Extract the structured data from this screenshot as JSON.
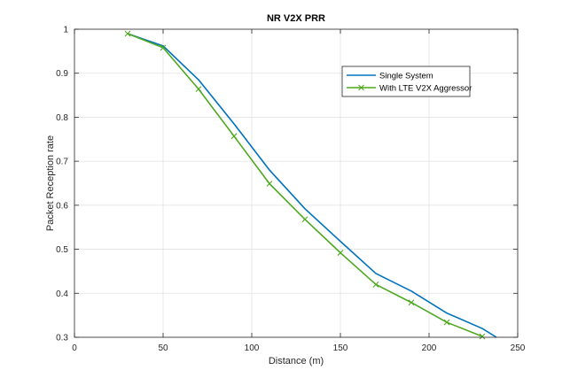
{
  "chart_data": {
    "type": "line",
    "title": "NR V2X PRR",
    "xlabel": "Distance (m)",
    "ylabel": "Packet Reception rate",
    "xlim": [
      0,
      250
    ],
    "ylim": [
      0.3,
      1
    ],
    "xticks": [
      "0",
      "50",
      "100",
      "150",
      "200",
      "250"
    ],
    "yticks": [
      "0.3",
      "0.4",
      "0.5",
      "0.6",
      "0.7",
      "0.8",
      "0.9",
      "1"
    ],
    "grid": true,
    "legend_position": "top-right",
    "series": [
      {
        "name": "Single System",
        "color": "#0072BD",
        "marker": "none",
        "x": [
          30,
          50,
          70,
          90,
          110,
          130,
          150,
          170,
          190,
          210,
          230,
          238
        ],
        "y": [
          0.99,
          0.962,
          0.885,
          0.785,
          0.68,
          0.592,
          0.518,
          0.445,
          0.405,
          0.355,
          0.32,
          0.3
        ]
      },
      {
        "name": "With LTE V2X Aggressor",
        "color": "#4DA81F",
        "marker": "x",
        "x": [
          30,
          50,
          70,
          90,
          110,
          130,
          150,
          170,
          190,
          210,
          230
        ],
        "y": [
          0.99,
          0.958,
          0.864,
          0.757,
          0.649,
          0.568,
          0.492,
          0.42,
          0.379,
          0.334,
          0.302
        ]
      }
    ]
  }
}
